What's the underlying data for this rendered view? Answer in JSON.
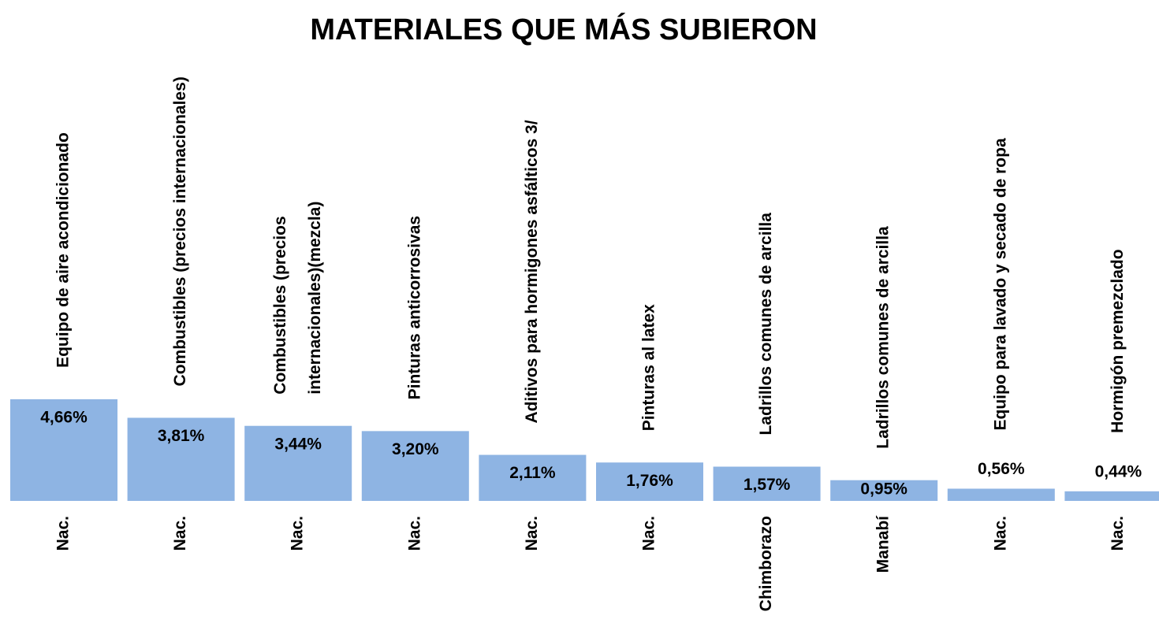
{
  "chart_data": {
    "type": "bar",
    "title": "MATERIALES QUE MÁS SUBIERON",
    "categories": [
      "Equipo de aire acondicionado",
      "Combustibles (precios internacionales)",
      "Combustibles (precios internacionales)(mezcla)",
      "Pinturas anticorrosivas",
      "Aditivos para hormigones asfálticos 3/",
      "Pinturas al latex",
      "Ladrillos comunes de arcilla",
      "Ladrillos comunes de arcilla",
      "Equipo para lavado y secado de ropa",
      "Hormigón premezclado"
    ],
    "regions": [
      "Nac.",
      "Nac.",
      "Nac.",
      "Nac.",
      "Nac.",
      "Nac.",
      "Chimborazo",
      "Manabí",
      "Nac.",
      "Nac."
    ],
    "values": [
      4.66,
      3.81,
      3.44,
      3.2,
      2.11,
      1.76,
      1.57,
      0.95,
      0.56,
      0.44
    ],
    "value_labels": [
      "4,66%",
      "3,81%",
      "3,44%",
      "3,20%",
      "2,11%",
      "1,76%",
      "1,57%",
      "0,95%",
      "0,56%",
      "0,44%"
    ],
    "color": "#8eb4e3"
  }
}
